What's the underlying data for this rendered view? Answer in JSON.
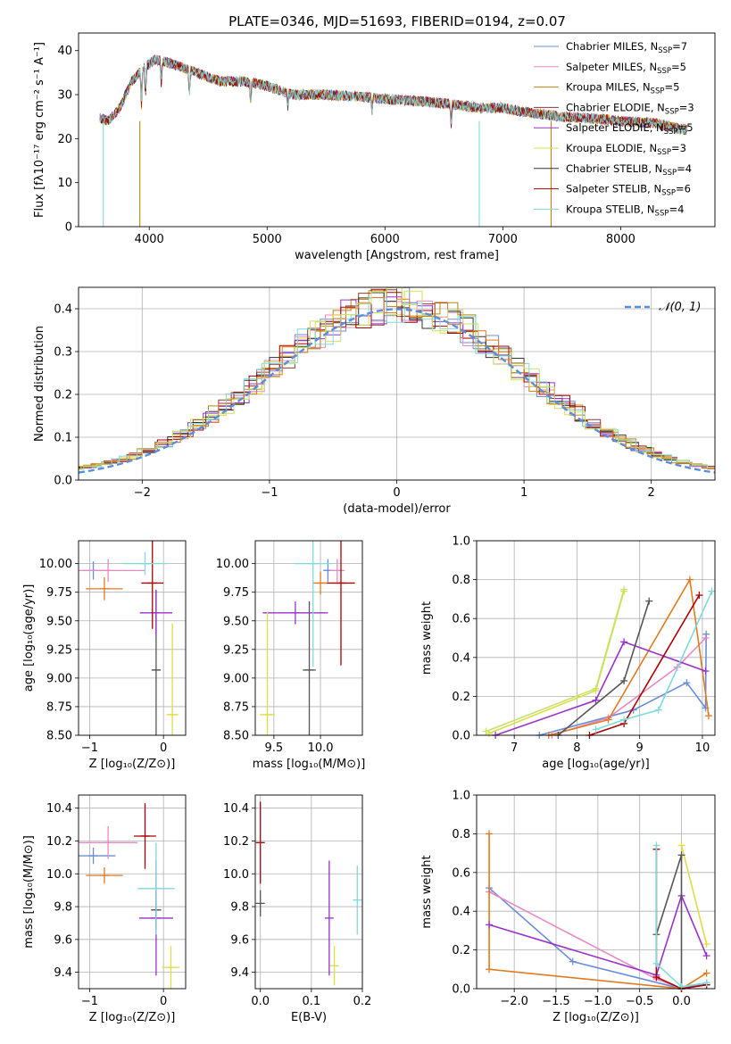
{
  "figure": {
    "title": "PLATE=0346, MJD=51693, FIBERID=0194, z=0.07"
  },
  "chart_data": [
    {
      "id": "spectrum",
      "type": "line",
      "xlabel": "wavelength [Angstrom, rest frame]",
      "ylabel": "Flux [fλ10⁻¹⁷ erg cm⁻² s⁻¹ A⁻¹]",
      "xlim": [
        3400,
        8800
      ],
      "ylim": [
        0,
        44
      ],
      "xticks": [
        4000,
        5000,
        6000,
        7000,
        8000
      ],
      "yticks": [
        0,
        10,
        20,
        30,
        40
      ],
      "grid": false,
      "legend_position": "top-right",
      "legend": [
        {
          "label": "Chabrier MILES, N",
          "sub": "SSP",
          "tail": "=7",
          "color": "#6b8ed6"
        },
        {
          "label": "Salpeter MILES, N",
          "sub": "SSP",
          "tail": "=5",
          "color": "#e78ac3"
        },
        {
          "label": "Kroupa MILES, N",
          "sub": "SSP",
          "tail": "=5",
          "color": "#b8860b"
        },
        {
          "label": "Chabrier ELODIE, N",
          "sub": "SSP",
          "tail": "=3",
          "color": "#8b3a3a"
        },
        {
          "label": "Salpeter ELODIE, N",
          "sub": "SSP",
          "tail": "=5",
          "color": "#9932cc"
        },
        {
          "label": "Kroupa ELODIE, N",
          "sub": "SSP",
          "tail": "=3",
          "color": "#dddd44"
        },
        {
          "label": "Chabrier STELIB, N",
          "sub": "SSP",
          "tail": "=4",
          "color": "#333333"
        },
        {
          "label": "Salpeter STELIB, N",
          "sub": "SSP",
          "tail": "=6",
          "color": "#aa0000"
        },
        {
          "label": "Kroupa STELIB, N",
          "sub": "SSP",
          "tail": "=4",
          "color": "#7fdada"
        }
      ],
      "continuum": [
        [
          3550,
          25
        ],
        [
          3650,
          24
        ],
        [
          3750,
          27
        ],
        [
          3850,
          33
        ],
        [
          3950,
          36
        ],
        [
          4050,
          38
        ],
        [
          4200,
          37
        ],
        [
          4400,
          35
        ],
        [
          4600,
          33
        ],
        [
          4800,
          33
        ],
        [
          5000,
          32
        ],
        [
          5200,
          30
        ],
        [
          5500,
          30
        ],
        [
          5800,
          29.5
        ],
        [
          6000,
          29
        ],
        [
          6300,
          28.5
        ],
        [
          6500,
          28
        ],
        [
          6800,
          27
        ],
        [
          7000,
          27
        ],
        [
          7200,
          26
        ],
        [
          7500,
          25
        ],
        [
          7800,
          24.5
        ],
        [
          8000,
          24
        ],
        [
          8300,
          23.5
        ],
        [
          8550,
          22
        ]
      ]
    },
    {
      "id": "residuals",
      "type": "line",
      "xlabel": "(data-model)/error",
      "ylabel": "Normed distribution",
      "xlim": [
        -2.5,
        2.5
      ],
      "ylim": [
        0,
        0.45
      ],
      "xticks": [
        -2,
        -1,
        0,
        1,
        2
      ],
      "yticks": [
        0.0,
        0.1,
        0.2,
        0.3,
        0.4
      ],
      "grid": true,
      "legend_position": "top-right",
      "legend_label": "𝒩(0, 1)",
      "gaussian_color": "#5b8ddf"
    },
    {
      "id": "age_vs_Z",
      "type": "scatter",
      "xlabel": "Z [log₁₀(Z/Z⊙)]",
      "ylabel": "age  [log₁₀(age/yr)]",
      "xlim": [
        -1.15,
        0.3
      ],
      "ylim": [
        8.5,
        10.2
      ],
      "xticks": [
        -1,
        0
      ],
      "yticks": [
        8.5,
        8.75,
        9.0,
        9.25,
        9.5,
        9.75,
        10.0
      ],
      "grid": true,
      "points": [
        {
          "x": -0.95,
          "y": 9.94,
          "xerr": 0.15,
          "yerr": 0.08,
          "color": "#6b8ed6"
        },
        {
          "x": -0.75,
          "y": 9.94,
          "xerr": 0.5,
          "yerr": 0.1,
          "color": "#e78ac3"
        },
        {
          "x": -0.8,
          "y": 9.78,
          "xerr": 0.25,
          "yerr": 0.1,
          "color": "#e07b20"
        },
        {
          "x": -0.1,
          "y": 9.07,
          "xerr": 0.06,
          "yerr": 0.7,
          "color": "#555555"
        },
        {
          "x": -0.1,
          "y": 9.57,
          "xerr": 0.22,
          "yerr": 0.2,
          "color": "#9932cc"
        },
        {
          "x": -0.15,
          "y": 9.83,
          "xerr": 0.15,
          "yerr": 0.4,
          "color": "#aa0000"
        },
        {
          "x": -0.25,
          "y": 10.0,
          "xerr": 0.3,
          "yerr": 0.1,
          "color": "#7fdada"
        },
        {
          "x": 0.12,
          "y": 8.68,
          "xerr": 0.08,
          "yerr": 0.8,
          "color": "#dddd44"
        }
      ]
    },
    {
      "id": "age_vs_mass",
      "type": "scatter",
      "xlabel": "mass [log₁₀(M/M⊙)]",
      "ylabel": "",
      "xlim": [
        9.3,
        10.45
      ],
      "ylim": [
        8.5,
        10.2
      ],
      "xticks": [
        9.5,
        10.0
      ],
      "yticks": [
        8.5,
        8.75,
        9.0,
        9.25,
        9.5,
        9.75,
        10.0
      ],
      "grid": true,
      "points": [
        {
          "x": 10.08,
          "y": 9.94,
          "xerr": 0.05,
          "yerr": 0.1,
          "color": "#6b8ed6"
        },
        {
          "x": 10.18,
          "y": 9.94,
          "xerr": 0.08,
          "yerr": 0.1,
          "color": "#e78ac3"
        },
        {
          "x": 10.0,
          "y": 9.83,
          "xerr": 0.08,
          "yerr": 0.1,
          "color": "#e07b20"
        },
        {
          "x": 9.88,
          "y": 9.07,
          "xerr": 0.07,
          "yerr": 0.6,
          "color": "#555555"
        },
        {
          "x": 9.73,
          "y": 9.57,
          "xerr": 0.35,
          "yerr": 0.1,
          "color": "#9932cc"
        },
        {
          "x": 10.22,
          "y": 9.83,
          "xerr": 0.15,
          "yerr": 0.72,
          "color": "#aa0000"
        },
        {
          "x": 9.92,
          "y": 10.0,
          "xerr": 0.2,
          "yerr": 0.9,
          "color": "#7fdada"
        },
        {
          "x": 9.43,
          "y": 8.68,
          "xerr": 0.08,
          "yerr": 0.9,
          "color": "#dddd44"
        }
      ]
    },
    {
      "id": "weight_vs_age",
      "type": "line",
      "xlabel": "age  [log₁₀(age/yr)]",
      "ylabel": "mass weight",
      "xlim": [
        6.4,
        10.2
      ],
      "ylim": [
        0,
        1.0
      ],
      "xticks": [
        7,
        8,
        9,
        10
      ],
      "yticks": [
        0.0,
        0.2,
        0.4,
        0.6,
        0.8,
        1.0
      ],
      "grid": true,
      "series": [
        {
          "color": "#6b8ed6",
          "x": [
            7.4,
            8.9,
            9.75,
            10.05,
            10.06
          ],
          "y": [
            0.0,
            0.13,
            0.27,
            0.14,
            0.52
          ]
        },
        {
          "color": "#e78ac3",
          "x": [
            7.6,
            8.5,
            9.6,
            10.05
          ],
          "y": [
            0.0,
            0.09,
            0.35,
            0.5
          ]
        },
        {
          "color": "#e07b20",
          "x": [
            7.55,
            8.5,
            9.8,
            10.1
          ],
          "y": [
            0.0,
            0.08,
            0.8,
            0.1
          ]
        },
        {
          "color": "#9932cc",
          "x": [
            6.7,
            8.3,
            8.75,
            10.05
          ],
          "y": [
            0.0,
            0.18,
            0.48,
            0.33
          ]
        },
        {
          "color": "#dddd44",
          "x": [
            6.6,
            8.3,
            8.75
          ],
          "y": [
            0.01,
            0.23,
            0.74
          ]
        },
        {
          "color": "#c6e26c",
          "x": [
            6.55,
            8.3,
            8.75
          ],
          "y": [
            0.02,
            0.24,
            0.75
          ]
        },
        {
          "color": "#555555",
          "x": [
            7.7,
            8.75,
            9.15
          ],
          "y": [
            0.0,
            0.28,
            0.69
          ]
        },
        {
          "color": "#aa0000",
          "x": [
            8.2,
            8.75,
            9.95
          ],
          "y": [
            0.0,
            0.06,
            0.72
          ]
        },
        {
          "color": "#7fdada",
          "x": [
            8.3,
            8.75,
            9.3,
            10.15
          ],
          "y": [
            0.03,
            0.08,
            0.13,
            0.74
          ]
        }
      ]
    },
    {
      "id": "mass_vs_Z",
      "type": "scatter",
      "xlabel": "Z [log₁₀(Z/Z⊙)]",
      "ylabel": "mass [log₁₀(M/M⊙)]",
      "xlim": [
        -1.15,
        0.3
      ],
      "ylim": [
        9.3,
        10.48
      ],
      "xticks": [
        -1,
        0
      ],
      "yticks": [
        9.4,
        9.6,
        9.8,
        10.0,
        10.2,
        10.4
      ],
      "grid": true,
      "points": [
        {
          "x": -0.95,
          "y": 10.11,
          "xerr": 0.3,
          "yerr": 0.05,
          "color": "#6b8ed6"
        },
        {
          "x": -0.75,
          "y": 10.19,
          "xerr": 0.4,
          "yerr": 0.1,
          "color": "#e78ac3"
        },
        {
          "x": -0.8,
          "y": 9.99,
          "xerr": 0.25,
          "yerr": 0.05,
          "color": "#e07b20"
        },
        {
          "x": -0.1,
          "y": 9.78,
          "xerr": 0.07,
          "yerr": 0.12,
          "color": "#555555"
        },
        {
          "x": -0.1,
          "y": 9.73,
          "xerr": 0.23,
          "yerr": 0.35,
          "color": "#9932cc"
        },
        {
          "x": -0.25,
          "y": 10.23,
          "xerr": 0.15,
          "yerr": 0.2,
          "color": "#aa0000"
        },
        {
          "x": -0.1,
          "y": 9.91,
          "xerr": 0.25,
          "yerr": 0.28,
          "color": "#7fdada"
        },
        {
          "x": 0.1,
          "y": 9.43,
          "xerr": 0.12,
          "yerr": 0.13,
          "color": "#dddd44"
        }
      ]
    },
    {
      "id": "mass_vs_EBV",
      "type": "scatter",
      "xlabel": "E(B-V)",
      "ylabel": "",
      "xlim": [
        -0.01,
        0.2
      ],
      "ylim": [
        9.3,
        10.48
      ],
      "xticks": [
        0.0,
        0.1,
        0.2
      ],
      "yticks": [
        9.4,
        9.6,
        9.8,
        10.0,
        10.2,
        10.4
      ],
      "grid": true,
      "points": [
        {
          "x": 0.0,
          "y": 10.19,
          "xerr": 0,
          "yerr": 0.25,
          "color": "#aa0000"
        },
        {
          "x": 0.0,
          "y": 9.82,
          "xerr": 0,
          "yerr": 0.08,
          "color": "#555555"
        },
        {
          "x": 0.135,
          "y": 9.73,
          "xerr": 0,
          "yerr": 0.35,
          "color": "#9932cc"
        },
        {
          "x": 0.145,
          "y": 9.44,
          "xerr": 0,
          "yerr": 0.12,
          "color": "#dddd44"
        },
        {
          "x": 0.19,
          "y": 9.84,
          "xerr": 0,
          "yerr": 0.21,
          "color": "#7fdada"
        }
      ]
    },
    {
      "id": "weight_vs_Z",
      "type": "line",
      "xlabel": "Z [log₁₀(Z/Z⊙)]",
      "ylabel": "mass weight",
      "xlim": [
        -2.45,
        0.4
      ],
      "ylim": [
        0,
        1.0
      ],
      "xticks": [
        -2.0,
        -1.5,
        -1.0,
        -0.5,
        0.0
      ],
      "yticks": [
        0.0,
        0.2,
        0.4,
        0.6,
        0.8,
        1.0
      ],
      "grid": true,
      "series": [
        {
          "color": "#6b8ed6",
          "x": [
            -2.3,
            -1.3,
            0.0,
            0.3
          ],
          "y": [
            0.52,
            0.14,
            0.0,
            0.03
          ]
        },
        {
          "color": "#e78ac3",
          "x": [
            -2.3,
            -0.3,
            0.0,
            0.3
          ],
          "y": [
            0.5,
            0.05,
            0.0,
            0.02
          ]
        },
        {
          "color": "#e07b20",
          "x": [
            -2.3,
            -2.3,
            0.0,
            0.3
          ],
          "y": [
            0.8,
            0.1,
            0.0,
            0.08
          ]
        },
        {
          "color": "#9932cc",
          "x": [
            -2.3,
            -0.3,
            0.0,
            0.3
          ],
          "y": [
            0.33,
            0.07,
            0.48,
            0.17
          ]
        },
        {
          "color": "#dddd44",
          "x": [
            0.0,
            0.3
          ],
          "y": [
            0.74,
            0.23
          ]
        },
        {
          "color": "#555555",
          "x": [
            -0.3,
            0.0,
            0.0
          ],
          "y": [
            0.28,
            0.69,
            0.0
          ]
        },
        {
          "color": "#aa0000",
          "x": [
            -0.3,
            -0.3,
            0.0,
            0.3
          ],
          "y": [
            0.72,
            0.06,
            0.0,
            0.02
          ]
        },
        {
          "color": "#7fdada",
          "x": [
            -0.3,
            -0.3,
            0.0,
            0.3
          ],
          "y": [
            0.74,
            0.13,
            0.01,
            0.03
          ]
        }
      ]
    }
  ]
}
